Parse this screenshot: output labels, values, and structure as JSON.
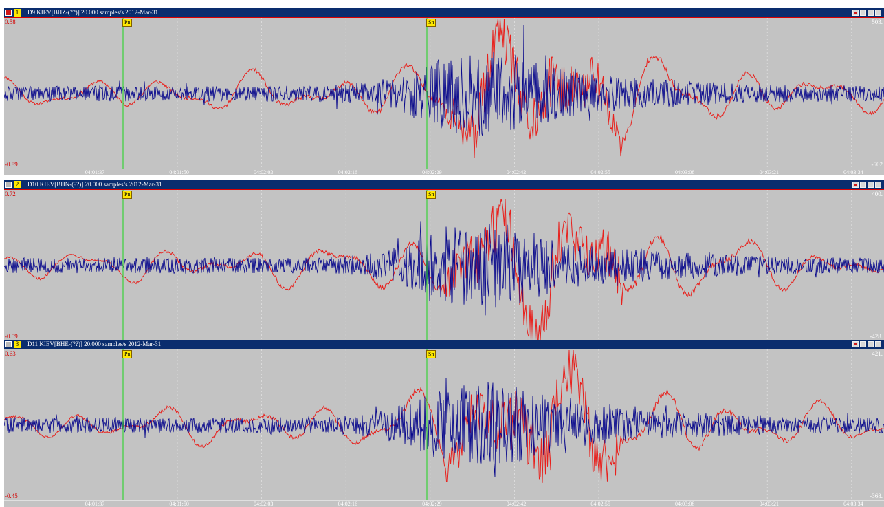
{
  "window": {
    "background": "#ffffff",
    "title_bar_color": "#0a2d6e",
    "plot_background": "#c3c3c3"
  },
  "phase_names": [
    "Pn",
    "Sn"
  ],
  "time_ticks": [
    "04:01:37",
    "04:01:50",
    "04:02:03",
    "04:02:16",
    "04:02:29",
    "04:02:42",
    "04:02:55",
    "04:03:08",
    "04:03:21",
    "04:03:34"
  ],
  "channels": [
    {
      "number": "1",
      "title": "D9  KIEV[BHZ-(??)] 20.000 samples/s 2012-Mar-31",
      "selected": true,
      "left_scale_top": "0.58",
      "left_scale_bottom": "-0.89",
      "right_scale_top": "503.",
      "right_scale_bottom": "-502"
    },
    {
      "number": "2",
      "title": "D10  KIEV[BHN-(??)] 20.000 samples/s 2012-Mar-31",
      "selected": false,
      "left_scale_top": "0.72",
      "left_scale_bottom": "-0.59",
      "right_scale_top": "400.",
      "right_scale_bottom": "-428."
    },
    {
      "number": "3",
      "title": "D11  KIEV[BHE-(??)] 20.000 samples/s 2012-Mar-31",
      "selected": false,
      "left_scale_top": "0.63",
      "left_scale_bottom": "-0.45",
      "right_scale_top": "421.",
      "right_scale_bottom": "-368."
    }
  ],
  "trace_colors": {
    "red": "#e8201c",
    "blue": "#0a0a8c",
    "phase_line": "#3ad23a",
    "grid_line": "#e6e6e6"
  }
}
